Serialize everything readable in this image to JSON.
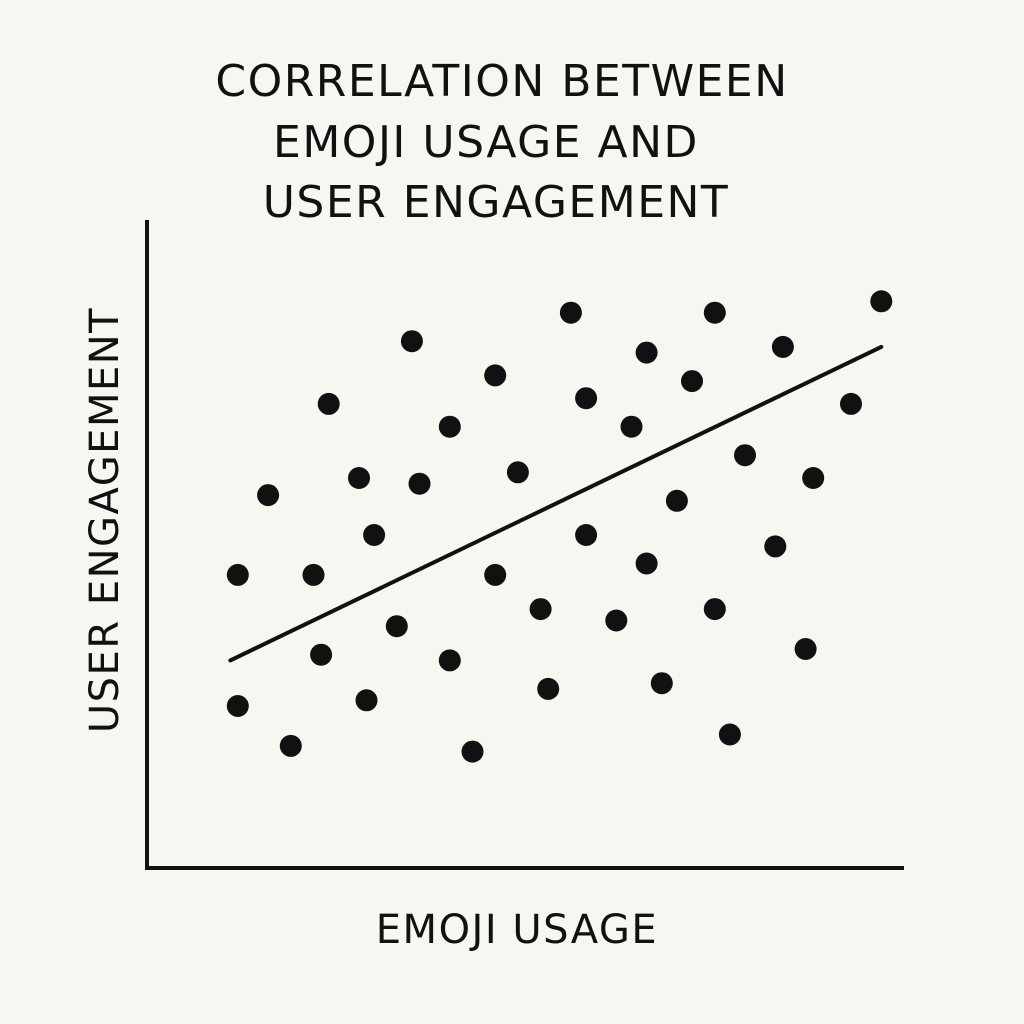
{
  "chart_data": {
    "type": "scatter",
    "title_lines": [
      "CORRELATION BETWEEN",
      "EMOJI USAGE AND",
      "USER ENGAGEMENT"
    ],
    "xlabel": "EMOJI USAGE",
    "ylabel": "USER ENGAGEMENT",
    "xlim": [
      0,
      100
    ],
    "ylim": [
      0,
      100
    ],
    "grid": false,
    "legend": "none",
    "colors": {
      "points": "#111111",
      "axes": "#111111",
      "trend": "#111111",
      "background": "#f8f6f1"
    },
    "points": [
      {
        "x": 12,
        "y": 43
      },
      {
        "x": 22,
        "y": 43
      },
      {
        "x": 12,
        "y": 20
      },
      {
        "x": 16,
        "y": 57
      },
      {
        "x": 19,
        "y": 13
      },
      {
        "x": 23,
        "y": 29
      },
      {
        "x": 24,
        "y": 73
      },
      {
        "x": 28,
        "y": 60
      },
      {
        "x": 30,
        "y": 50
      },
      {
        "x": 29,
        "y": 21
      },
      {
        "x": 33,
        "y": 34
      },
      {
        "x": 35,
        "y": 84
      },
      {
        "x": 36,
        "y": 59
      },
      {
        "x": 40,
        "y": 69
      },
      {
        "x": 40,
        "y": 28
      },
      {
        "x": 43,
        "y": 12
      },
      {
        "x": 46,
        "y": 78
      },
      {
        "x": 46,
        "y": 43
      },
      {
        "x": 49,
        "y": 61
      },
      {
        "x": 52,
        "y": 37
      },
      {
        "x": 53,
        "y": 23
      },
      {
        "x": 56,
        "y": 89
      },
      {
        "x": 58,
        "y": 74
      },
      {
        "x": 58,
        "y": 50
      },
      {
        "x": 62,
        "y": 35
      },
      {
        "x": 64,
        "y": 69
      },
      {
        "x": 66,
        "y": 82
      },
      {
        "x": 66,
        "y": 45
      },
      {
        "x": 68,
        "y": 24
      },
      {
        "x": 70,
        "y": 56
      },
      {
        "x": 72,
        "y": 77
      },
      {
        "x": 75,
        "y": 89
      },
      {
        "x": 75,
        "y": 37
      },
      {
        "x": 77,
        "y": 15
      },
      {
        "x": 79,
        "y": 64
      },
      {
        "x": 83,
        "y": 48
      },
      {
        "x": 84,
        "y": 83
      },
      {
        "x": 87,
        "y": 30
      },
      {
        "x": 88,
        "y": 60
      },
      {
        "x": 93,
        "y": 73
      },
      {
        "x": 97,
        "y": 91
      }
    ],
    "trendline": {
      "x": [
        11,
        97
      ],
      "y": [
        28,
        83
      ]
    }
  }
}
